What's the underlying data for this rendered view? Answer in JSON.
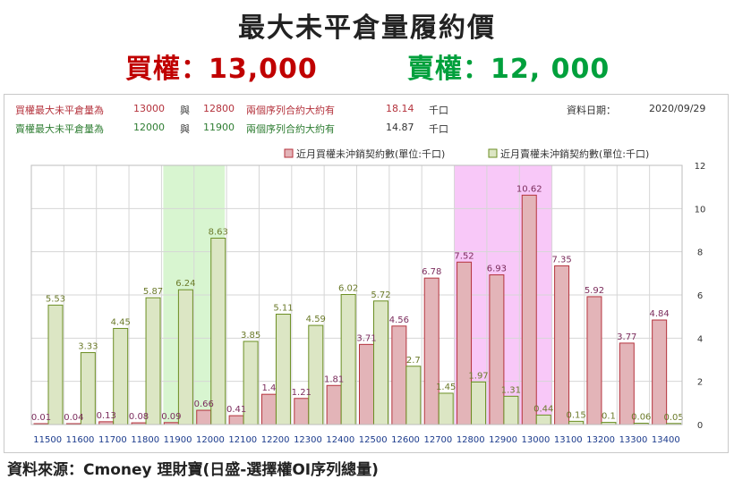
{
  "header": {
    "title": "最大未平倉量履約價",
    "call_label": "買權：13,000",
    "put_label": "賣權：12, 000"
  },
  "info": {
    "row1": [
      "買權最大未平倉量為",
      "13000",
      "與",
      "12800",
      "兩個序列合約大約有",
      "18.14",
      "千口"
    ],
    "row2": [
      "賣權最大未平倉量為",
      "12000",
      "與",
      "11900",
      "兩個序列合約大約有",
      "14.87",
      "千口"
    ],
    "date_label": "資料日期：",
    "date_value": "2020/09/29"
  },
  "colors": {
    "call_bar": "#e3b4b8",
    "call_border": "#b4323c",
    "put_bar": "#dce6c4",
    "put_border": "#6b8e23",
    "highlight_green": "#d8f5d0",
    "highlight_pink": "#f8c8f8",
    "label_call": "#7b2c5c",
    "label_put": "#6b7a2a",
    "axis_text": "#1a3a8c"
  },
  "chart_data": {
    "type": "bar",
    "categories": [
      "11500",
      "11600",
      "11700",
      "11800",
      "11900",
      "12000",
      "12100",
      "12200",
      "12300",
      "12400",
      "12500",
      "12600",
      "12700",
      "12800",
      "12900",
      "13000",
      "13100",
      "13200",
      "13300",
      "13400"
    ],
    "series": [
      {
        "name": "近月買權未沖銷契約數(單位:千口)",
        "values": [
          0.01,
          0.04,
          0.13,
          0.08,
          0.09,
          0.66,
          0.41,
          1.4,
          1.21,
          1.81,
          3.71,
          4.56,
          6.78,
          7.52,
          6.93,
          10.62,
          7.35,
          5.92,
          3.77,
          4.84
        ]
      },
      {
        "name": "近月賣權未沖銷契約數(單位:千口)",
        "values": [
          5.53,
          3.33,
          4.45,
          5.87,
          6.24,
          8.63,
          3.85,
          5.11,
          4.59,
          6.02,
          5.72,
          2.7,
          1.45,
          1.97,
          1.31,
          0.44,
          0.15,
          0.1,
          0.06,
          0.05
        ]
      }
    ],
    "value_labels": {
      "call": [
        "0.01",
        "0.04",
        "0.13",
        "0.08",
        "0.09",
        "0.66",
        "0.41",
        "1.4",
        "1.21",
        "1.81",
        "3.71",
        "4.56",
        "6.78",
        "7.52",
        "6.93",
        "10.62",
        "7.35",
        "5.92",
        "3.77",
        "4.84"
      ],
      "put": [
        "5.53",
        "3.33",
        "4.45",
        "5.87",
        "6.24",
        "8.63",
        "3.85",
        "5.11",
        "4.59",
        "6.02",
        "5.72",
        "2.7",
        "1.45",
        "1.97",
        "1.31",
        "0.44",
        "0.15",
        "0.1",
        "0.06",
        "0.05"
      ]
    },
    "highlight_put_category": "11900",
    "highlight_call_category": "12800",
    "ylim": [
      0,
      12
    ],
    "yticks": [
      "0",
      "2",
      "4",
      "6",
      "8",
      "10",
      "12"
    ],
    "xlabel": "",
    "ylabel": "",
    "grid": true,
    "legend_position": "top"
  },
  "footer": {
    "source": "資料來源：Cmoney 理財寶(日盛-選擇權OI序列總量)"
  }
}
